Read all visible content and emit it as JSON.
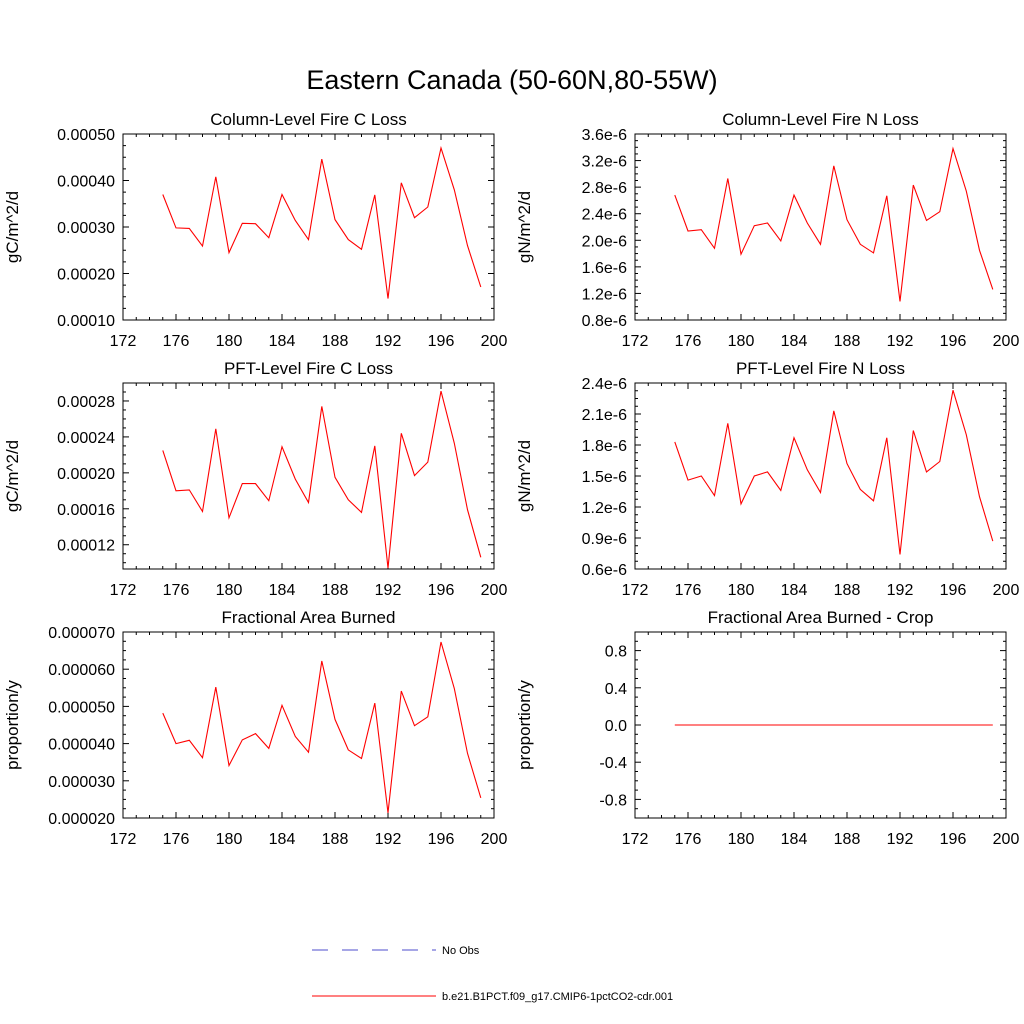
{
  "figure": {
    "title": "Eastern Canada (50-60N,80-55W)"
  },
  "legend": {
    "placement": "bottom-center",
    "entries": [
      {
        "label": "No Obs",
        "color": "#4d4dcc",
        "style": "dashed"
      },
      {
        "label": "b.e21.B1PCT.f09_g17.CMIP6-1pctCO2-cdr.001",
        "color": "#ff0000",
        "style": "solid"
      }
    ]
  },
  "chart_data": [
    {
      "type": "line",
      "title": "Column-Level Fire C Loss",
      "ylabel": "gC/m^2/d",
      "xlim": [
        172,
        200
      ],
      "ylim": [
        0.0001,
        0.0005
      ],
      "xticks": [
        172,
        176,
        180,
        184,
        188,
        192,
        196,
        200
      ],
      "xtick_labels": [
        "172",
        "176",
        "180",
        "184",
        "188",
        "192",
        "196",
        "200"
      ],
      "yticks": [
        0.0001,
        0.0002,
        0.0003,
        0.0004,
        0.0005
      ],
      "ytick_labels": [
        "0.00010",
        "0.00020",
        "0.00030",
        "0.00040",
        "0.00050"
      ],
      "x": [
        175,
        176,
        177,
        178,
        179,
        180,
        181,
        182,
        183,
        184,
        185,
        186,
        187,
        188,
        189,
        190,
        191,
        192,
        193,
        194,
        195,
        196,
        197,
        198,
        199
      ],
      "series": [
        {
          "color": "#ff0000",
          "values": [
            0.00037,
            0.000298,
            0.000297,
            0.000259,
            0.000408,
            0.000245,
            0.000308,
            0.000307,
            0.000277,
            0.00037,
            0.000314,
            0.000273,
            0.000446,
            0.000316,
            0.000273,
            0.000252,
            0.000369,
            0.000146,
            0.000395,
            0.00032,
            0.000343,
            0.00047,
            0.00038,
            0.00026,
            0.000171
          ]
        }
      ]
    },
    {
      "type": "line",
      "title": "Column-Level Fire N Loss",
      "ylabel": "gN/m^2/d",
      "xlim": [
        172,
        200
      ],
      "ylim": [
        8e-07,
        3.6e-06
      ],
      "xticks": [
        172,
        176,
        180,
        184,
        188,
        192,
        196,
        200
      ],
      "xtick_labels": [
        "172",
        "176",
        "180",
        "184",
        "188",
        "192",
        "196",
        "200"
      ],
      "yticks": [
        8e-07,
        1.2e-06,
        1.6e-06,
        2e-06,
        2.4e-06,
        2.8e-06,
        3.2e-06,
        3.6e-06
      ],
      "ytick_labels": [
        "0.8e-6",
        "1.2e-6",
        "1.6e-6",
        "2.0e-6",
        "2.4e-6",
        "2.8e-6",
        "3.2e-6",
        "3.6e-6"
      ],
      "x": [
        175,
        176,
        177,
        178,
        179,
        180,
        181,
        182,
        183,
        184,
        185,
        186,
        187,
        188,
        189,
        190,
        191,
        192,
        193,
        194,
        195,
        196,
        197,
        198,
        199
      ],
      "series": [
        {
          "color": "#ff0000",
          "values": [
            2.68e-06,
            2.14e-06,
            2.16e-06,
            1.88e-06,
            2.93e-06,
            1.79e-06,
            2.22e-06,
            2.26e-06,
            1.99e-06,
            2.68e-06,
            2.26e-06,
            1.94e-06,
            3.12e-06,
            2.31e-06,
            1.94e-06,
            1.81e-06,
            2.67e-06,
            1.08e-06,
            2.83e-06,
            2.3e-06,
            2.43e-06,
            3.38e-06,
            2.74e-06,
            1.85e-06,
            1.26e-06
          ]
        }
      ]
    },
    {
      "type": "line",
      "title": "PFT-Level Fire C Loss",
      "ylabel": "gC/m^2/d",
      "xlim": [
        172,
        200
      ],
      "ylim": [
        9.3e-05,
        0.0003
      ],
      "xticks": [
        172,
        176,
        180,
        184,
        188,
        192,
        196,
        200
      ],
      "xtick_labels": [
        "172",
        "176",
        "180",
        "184",
        "188",
        "192",
        "196",
        "200"
      ],
      "yticks": [
        0.00012,
        0.00016,
        0.0002,
        0.00024,
        0.00028
      ],
      "ytick_labels": [
        "0.00012",
        "0.00016",
        "0.00020",
        "0.00024",
        "0.00028"
      ],
      "x": [
        175,
        176,
        177,
        178,
        179,
        180,
        181,
        182,
        183,
        184,
        185,
        186,
        187,
        188,
        189,
        190,
        191,
        192,
        193,
        194,
        195,
        196,
        197,
        198,
        199
      ],
      "series": [
        {
          "color": "#ff0000",
          "values": [
            0.000225,
            0.00018,
            0.000181,
            0.000157,
            0.000249,
            0.00015,
            0.000188,
            0.000188,
            0.000169,
            0.000229,
            0.000193,
            0.000167,
            0.000274,
            0.000195,
            0.00017,
            0.000156,
            0.00023,
            9.4e-05,
            0.000244,
            0.000197,
            0.000212,
            0.000291,
            0.000233,
            0.000159,
            0.000106
          ]
        }
      ]
    },
    {
      "type": "line",
      "title": "PFT-Level Fire N Loss",
      "ylabel": "gN/m^2/d",
      "xlim": [
        172,
        200
      ],
      "ylim": [
        6e-07,
        2.4e-06
      ],
      "xticks": [
        172,
        176,
        180,
        184,
        188,
        192,
        196,
        200
      ],
      "xtick_labels": [
        "172",
        "176",
        "180",
        "184",
        "188",
        "192",
        "196",
        "200"
      ],
      "yticks": [
        6e-07,
        9e-07,
        1.2e-06,
        1.5e-06,
        1.8e-06,
        2.1e-06,
        2.4e-06
      ],
      "ytick_labels": [
        "0.6e-6",
        "0.9e-6",
        "1.2e-6",
        "1.5e-6",
        "1.8e-6",
        "2.1e-6",
        "2.4e-6"
      ],
      "x": [
        175,
        176,
        177,
        178,
        179,
        180,
        181,
        182,
        183,
        184,
        185,
        186,
        187,
        188,
        189,
        190,
        191,
        192,
        193,
        194,
        195,
        196,
        197,
        198,
        199
      ],
      "series": [
        {
          "color": "#ff0000",
          "values": [
            1.83e-06,
            1.46e-06,
            1.5e-06,
            1.31e-06,
            2.01e-06,
            1.23e-06,
            1.5e-06,
            1.54e-06,
            1.36e-06,
            1.87e-06,
            1.56e-06,
            1.34e-06,
            2.13e-06,
            1.62e-06,
            1.37e-06,
            1.26e-06,
            1.87e-06,
            7.4e-07,
            1.94e-06,
            1.54e-06,
            1.64e-06,
            2.33e-06,
            1.9e-06,
            1.3e-06,
            8.7e-07
          ]
        }
      ]
    },
    {
      "type": "line",
      "title": "Fractional Area Burned",
      "ylabel": "proportion/y",
      "xlim": [
        172,
        200
      ],
      "ylim": [
        2e-05,
        7e-05
      ],
      "xticks": [
        172,
        176,
        180,
        184,
        188,
        192,
        196,
        200
      ],
      "xtick_labels": [
        "172",
        "176",
        "180",
        "184",
        "188",
        "192",
        "196",
        "200"
      ],
      "yticks": [
        2e-05,
        3e-05,
        4e-05,
        5e-05,
        6e-05,
        7e-05
      ],
      "ytick_labels": [
        "0.000020",
        "0.000030",
        "0.000040",
        "0.000050",
        "0.000060",
        "0.000070"
      ],
      "x": [
        175,
        176,
        177,
        178,
        179,
        180,
        181,
        182,
        183,
        184,
        185,
        186,
        187,
        188,
        189,
        190,
        191,
        192,
        193,
        194,
        195,
        196,
        197,
        198,
        199
      ],
      "series": [
        {
          "color": "#ff0000",
          "values": [
            4.82e-05,
            4e-05,
            4.09e-05,
            3.62e-05,
            5.52e-05,
            3.41e-05,
            4.1e-05,
            4.27e-05,
            3.87e-05,
            5.03e-05,
            4.19e-05,
            3.77e-05,
            6.22e-05,
            4.65e-05,
            3.83e-05,
            3.6e-05,
            5.09e-05,
            2.14e-05,
            5.41e-05,
            4.48e-05,
            4.72e-05,
            6.73e-05,
            5.48e-05,
            3.74e-05,
            2.54e-05
          ]
        }
      ]
    },
    {
      "type": "line",
      "title": "Fractional Area Burned - Crop",
      "ylabel": "proportion/y",
      "xlim": [
        172,
        200
      ],
      "ylim": [
        -1.0,
        1.0
      ],
      "xticks": [
        172,
        176,
        180,
        184,
        188,
        192,
        196,
        200
      ],
      "xtick_labels": [
        "172",
        "176",
        "180",
        "184",
        "188",
        "192",
        "196",
        "200"
      ],
      "yticks": [
        -0.8,
        -0.4,
        0.0,
        0.4,
        0.8
      ],
      "ytick_labels": [
        "-0.8",
        "-0.4",
        "0.0",
        "0.4",
        "0.8"
      ],
      "x": [
        175,
        176,
        177,
        178,
        179,
        180,
        181,
        182,
        183,
        184,
        185,
        186,
        187,
        188,
        189,
        190,
        191,
        192,
        193,
        194,
        195,
        196,
        197,
        198,
        199
      ],
      "series": [
        {
          "color": "#ff0000",
          "values": [
            0,
            0,
            0,
            0,
            0,
            0,
            0,
            0,
            0,
            0,
            0,
            0,
            0,
            0,
            0,
            0,
            0,
            0,
            0,
            0,
            0,
            0,
            0,
            0,
            0
          ]
        }
      ]
    }
  ]
}
